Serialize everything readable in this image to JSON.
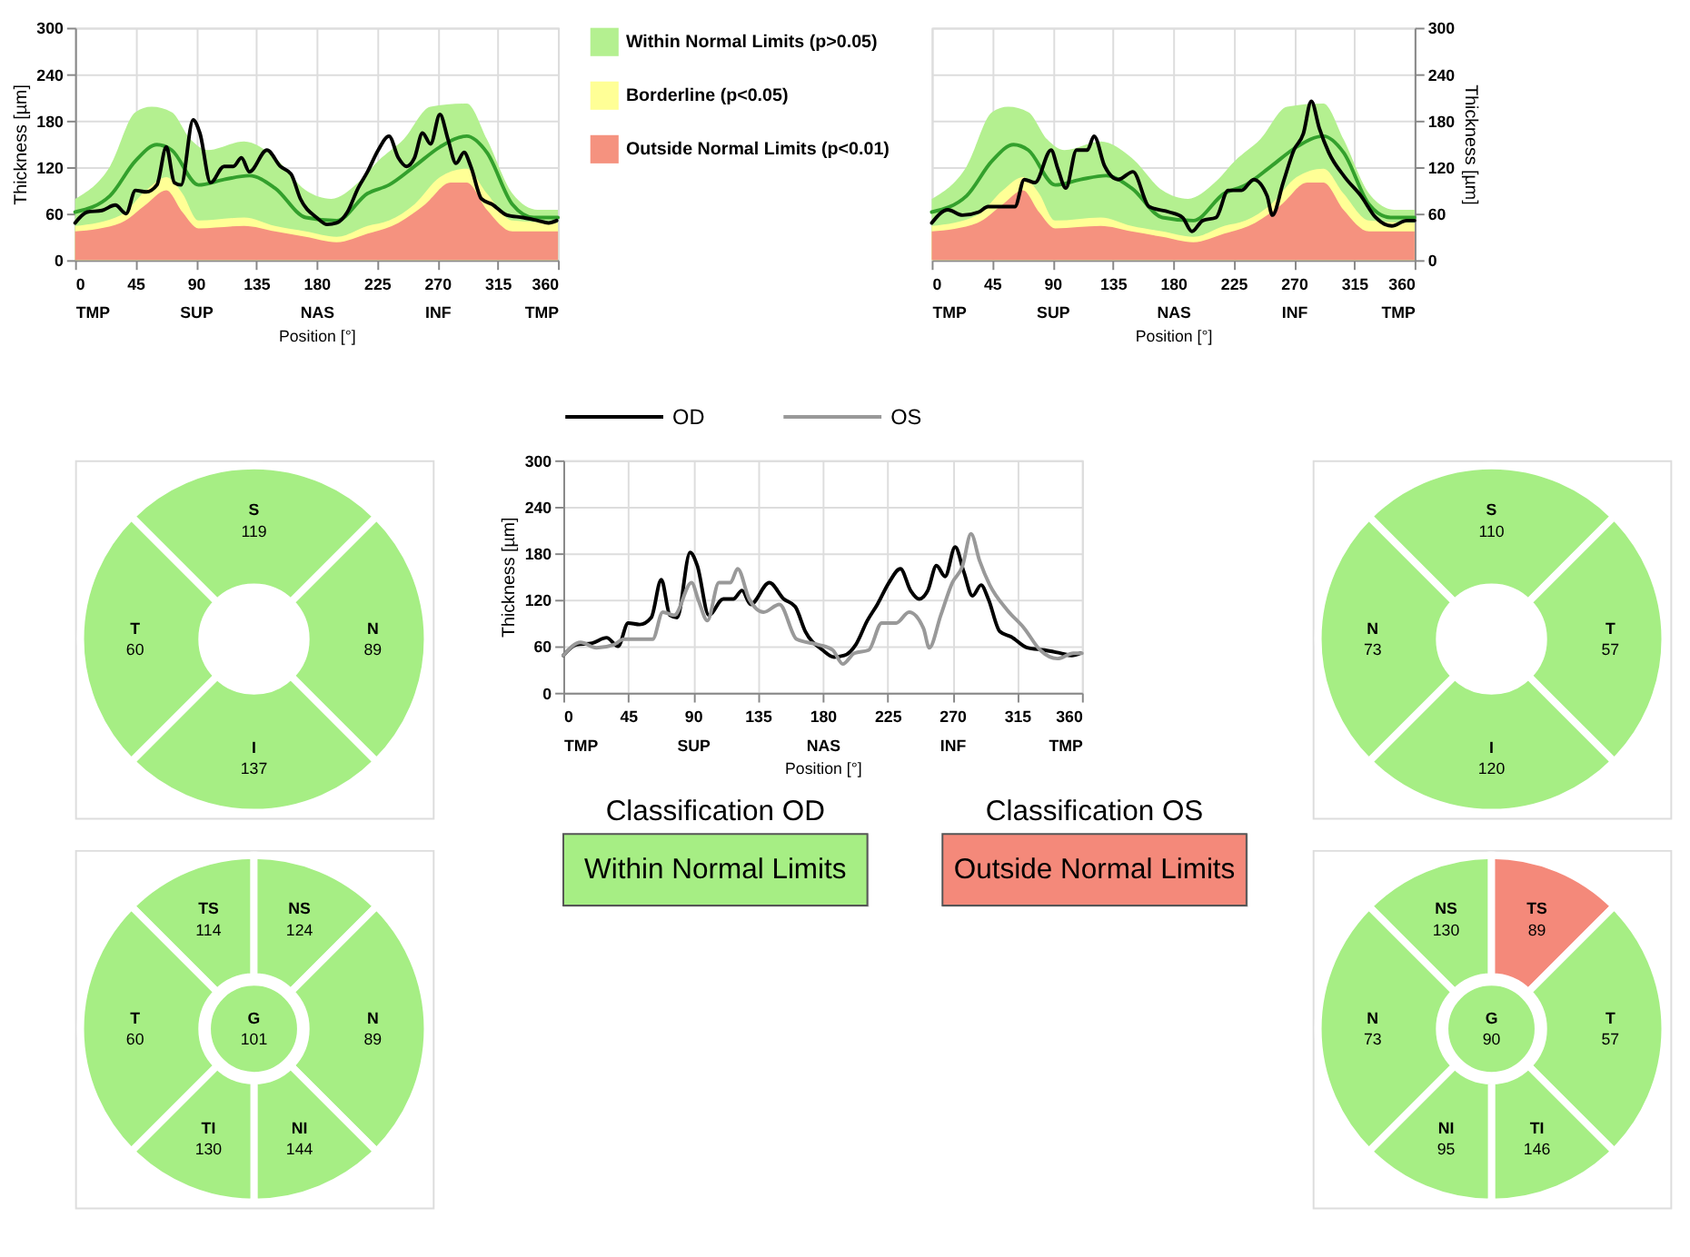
{
  "chart_data": [
    {
      "type": "line",
      "xlabel": "Position [°]",
      "ylabel": "Thickness [µm]",
      "xlim": [
        0,
        360
      ],
      "xticks": [
        {
          "value": 0,
          "label": "0\nTMP"
        },
        45,
        {
          "value": 90,
          "label": "90\nSUP"
        },
        135,
        {
          "value": 180,
          "label": "180\nNAS"
        },
        225,
        {
          "value": 270,
          "label": "270\nINF"
        },
        315,
        {
          "value": 360,
          "label": "360\nTMP"
        }
      ],
      "ylim": [
        0,
        300
      ],
      "yticks": [
        0,
        60,
        120,
        180,
        240,
        300
      ],
      "grid": true,
      "legend": "right",
      "series": [
        {
          "name": "Within Normal Limits (p>0.05)",
          "type": "area",
          "color": "#b4f090",
          "x": [
            0,
            26,
            45,
            57,
            72,
            86,
            99,
            126,
            149,
            172,
            191,
            211,
            226,
            245,
            265,
            292,
            307,
            326,
            345,
            360
          ],
          "values": [
            79,
            121,
            191,
            198,
            191,
            156,
            142,
            153,
            132,
            90,
            79,
            100,
            128,
            156,
            198,
            202,
            156,
            86,
            65,
            65
          ]
        },
        {
          "name": "Borderline (p<0.05)",
          "type": "area",
          "color": "#ffff96",
          "x": [
            0,
            34,
            53,
            68,
            80,
            92,
            126,
            149,
            172,
            195,
            218,
            234,
            253,
            272,
            292,
            307,
            326,
            360
          ],
          "values": [
            44,
            58,
            90,
            107,
            86,
            51,
            55,
            44,
            37,
            30,
            44,
            51,
            72,
            107,
            118,
            86,
            51,
            48
          ]
        },
        {
          "name": "Outside Normal Limits (p<0.01)",
          "type": "area",
          "color": "#f5927f",
          "x": [
            0,
            34,
            53,
            68,
            80,
            92,
            126,
            149,
            172,
            195,
            218,
            241,
            261,
            280,
            292,
            307,
            326,
            360
          ],
          "values": [
            37,
            48,
            72,
            90,
            62,
            41,
            44,
            37,
            30,
            23,
            34,
            48,
            72,
            100,
            100,
            65,
            37,
            37
          ]
        },
        {
          "type": "line",
          "color": "#33a02c",
          "x": [
            0,
            26,
            45,
            61,
            72,
            92,
            111,
            130,
            149,
            172,
            195,
            218,
            234,
            253,
            272,
            292,
            307,
            326,
            342,
            360
          ],
          "values": [
            62,
            83,
            128,
            149,
            142,
            97,
            104,
            109,
            93,
            55,
            51,
            86,
            97,
            121,
            146,
            160,
            139,
            72,
            55,
            55
          ]
        },
        {
          "type": "line",
          "color": "#000000",
          "x": [
            0,
            9,
            20,
            30,
            38,
            45,
            53,
            61,
            68,
            74,
            79,
            88,
            93,
            101,
            111,
            118,
            124,
            130,
            143,
            153,
            161,
            168,
            180,
            188,
            195,
            203,
            211,
            218,
            226,
            234,
            241,
            247,
            253,
            259,
            265,
            272,
            278,
            284,
            290,
            295,
            303,
            311,
            322,
            334,
            345,
            353,
            359
          ],
          "values": [
            48,
            62,
            64,
            71,
            60,
            90,
            88,
            97,
            146,
            100,
            97,
            181,
            164,
            100,
            121,
            121,
            132,
            114,
            142,
            121,
            111,
            79,
            55,
            46,
            48,
            62,
            93,
            114,
            142,
            160,
            132,
            121,
            132,
            164,
            150,
            188,
            156,
            125,
            139,
            121,
            79,
            72,
            58,
            55,
            51,
            48,
            51
          ]
        }
      ]
    },
    {
      "type": "line",
      "xlabel": "Position [°]",
      "y2label": "Thickness [µm]",
      "xlim": [
        0,
        360
      ],
      "xticks": [
        {
          "value": 0,
          "label": "0\nTMP"
        },
        45,
        {
          "value": 90,
          "label": "90\nSUP"
        },
        135,
        {
          "value": 180,
          "label": "180\nNAS"
        },
        225,
        {
          "value": 270,
          "label": "270\nINF"
        },
        315,
        {
          "value": 360,
          "label": "360\nTMP"
        }
      ],
      "y2lim": [
        0,
        300
      ],
      "y2ticks": [
        0,
        60,
        120,
        180,
        240,
        300
      ],
      "grid": true,
      "series": [
        {
          "type": "area",
          "axis": "y2",
          "color": "#b4f090",
          "x": [
            0,
            26,
            45,
            57,
            72,
            86,
            99,
            126,
            149,
            172,
            191,
            211,
            226,
            245,
            265,
            292,
            307,
            326,
            345,
            360
          ],
          "values": [
            79,
            121,
            191,
            198,
            191,
            156,
            142,
            153,
            132,
            90,
            79,
            100,
            128,
            156,
            198,
            202,
            156,
            86,
            65,
            65
          ]
        },
        {
          "type": "area",
          "axis": "y2",
          "color": "#ffff96",
          "x": [
            0,
            34,
            53,
            68,
            80,
            92,
            126,
            149,
            172,
            195,
            218,
            234,
            253,
            272,
            292,
            307,
            326,
            360
          ],
          "values": [
            44,
            58,
            90,
            107,
            86,
            51,
            55,
            44,
            37,
            30,
            44,
            51,
            72,
            107,
            118,
            86,
            51,
            48
          ]
        },
        {
          "type": "area",
          "axis": "y2",
          "color": "#f5927f",
          "x": [
            0,
            34,
            53,
            68,
            80,
            92,
            126,
            149,
            172,
            195,
            218,
            241,
            261,
            280,
            292,
            307,
            326,
            360
          ],
          "values": [
            37,
            48,
            72,
            90,
            62,
            41,
            44,
            37,
            30,
            23,
            34,
            48,
            72,
            100,
            100,
            65,
            37,
            37
          ]
        },
        {
          "type": "line",
          "axis": "y2",
          "color": "#33a02c",
          "x": [
            0,
            26,
            45,
            61,
            72,
            92,
            111,
            130,
            149,
            172,
            195,
            218,
            234,
            253,
            272,
            292,
            307,
            326,
            342,
            360
          ],
          "values": [
            62,
            83,
            128,
            149,
            142,
            97,
            104,
            109,
            93,
            55,
            51,
            86,
            97,
            121,
            146,
            160,
            139,
            72,
            55,
            55
          ]
        },
        {
          "type": "line",
          "axis": "y2",
          "color": "#000000",
          "x": [
            0,
            12,
            23,
            35,
            42,
            62,
            69,
            77,
            89,
            94,
            100,
            108,
            116,
            121,
            129,
            139,
            150,
            162,
            177,
            187,
            194,
            202,
            212,
            221,
            231,
            240,
            250,
            254,
            262,
            270,
            277,
            283,
            289,
            296,
            308,
            320,
            331,
            343,
            354,
            360
          ],
          "values": [
            48,
            65,
            58,
            62,
            69,
            69,
            104,
            100,
            142,
            118,
            93,
            142,
            142,
            160,
            121,
            104,
            114,
            69,
            62,
            55,
            37,
            51,
            55,
            90,
            90,
            104,
            83,
            58,
            100,
            142,
            163,
            205,
            170,
            139,
            107,
            83,
            55,
            44,
            51,
            51
          ]
        }
      ]
    },
    {
      "type": "other",
      "data_labels": true,
      "categories": [
        "S",
        "N",
        "I",
        "T"
      ],
      "values": [
        119,
        89,
        137,
        60
      ],
      "colors": [
        "#a6ee84",
        "#a6ee84",
        "#a6ee84",
        "#a6ee84"
      ]
    },
    {
      "type": "line",
      "xlabel": "Position [°]",
      "ylabel": "Thickness [µm]",
      "xlim": [
        0,
        360
      ],
      "xticks": [
        {
          "value": 0,
          "label": "0\nTMP"
        },
        45,
        {
          "value": 90,
          "label": "90\nSUP"
        },
        135,
        {
          "value": 180,
          "label": "180\nNAS"
        },
        225,
        {
          "value": 270,
          "label": "270\nINF"
        },
        315,
        {
          "value": 360,
          "label": "360\nTMP"
        }
      ],
      "ylim": [
        0,
        300
      ],
      "yticks": [
        0,
        60,
        120,
        180,
        240,
        300
      ],
      "grid": true,
      "legend": "top",
      "series": [
        {
          "name": "OD",
          "type": "line",
          "color": "#000000",
          "x": [
            0,
            9,
            20,
            30,
            38,
            45,
            53,
            61,
            68,
            74,
            79,
            88,
            93,
            101,
            111,
            118,
            124,
            130,
            143,
            153,
            161,
            168,
            180,
            188,
            195,
            203,
            211,
            218,
            226,
            234,
            241,
            247,
            253,
            259,
            265,
            272,
            278,
            284,
            290,
            295,
            303,
            311,
            322,
            334,
            345,
            353,
            359
          ],
          "values": [
            48,
            62,
            64,
            71,
            60,
            90,
            88,
            97,
            146,
            100,
            97,
            181,
            164,
            100,
            121,
            121,
            132,
            114,
            142,
            121,
            111,
            79,
            55,
            46,
            48,
            62,
            93,
            114,
            142,
            160,
            132,
            121,
            132,
            164,
            150,
            188,
            156,
            125,
            139,
            121,
            79,
            72,
            58,
            55,
            51,
            48,
            51
          ]
        },
        {
          "name": "OS",
          "type": "line",
          "color": "#999999",
          "x": [
            0,
            12,
            23,
            35,
            42,
            62,
            69,
            77,
            89,
            94,
            100,
            108,
            116,
            121,
            129,
            139,
            150,
            162,
            177,
            187,
            194,
            202,
            212,
            221,
            231,
            240,
            250,
            254,
            262,
            270,
            277,
            283,
            289,
            296,
            308,
            320,
            331,
            343,
            354,
            360
          ],
          "values": [
            48,
            65,
            58,
            62,
            69,
            69,
            104,
            100,
            142,
            118,
            93,
            142,
            142,
            160,
            121,
            104,
            114,
            69,
            62,
            55,
            37,
            51,
            55,
            90,
            90,
            104,
            83,
            58,
            100,
            142,
            163,
            205,
            170,
            139,
            107,
            83,
            55,
            44,
            51,
            51
          ]
        }
      ]
    },
    {
      "type": "other",
      "data_labels": true,
      "categories": [
        "S",
        "T",
        "I",
        "N"
      ],
      "values": [
        110,
        57,
        120,
        73
      ],
      "colors": [
        "#a6ee84",
        "#a6ee84",
        "#a6ee84",
        "#a6ee84"
      ]
    },
    {
      "type": "other",
      "data_labels": true,
      "categories": [
        "TS",
        "NS",
        "N",
        "NI",
        "TI",
        "T",
        "G"
      ],
      "values": [
        114,
        124,
        89,
        144,
        130,
        60,
        101
      ],
      "colors": [
        "#a6ee84",
        "#a6ee84",
        "#a6ee84",
        "#a6ee84",
        "#a6ee84",
        "#a6ee84",
        "#a6ee84"
      ]
    },
    {
      "type": "other",
      "title": "Classification OD",
      "annotations": [
        "Within Normal Limits"
      ],
      "colors": [
        "#a6ee84"
      ]
    },
    {
      "type": "other",
      "title": "Classification OS",
      "annotations": [
        "Outside Normal Limits"
      ],
      "colors": [
        "#f4897a"
      ]
    },
    {
      "type": "other",
      "data_labels": true,
      "categories": [
        "NS",
        "TS",
        "T",
        "TI",
        "NI",
        "N",
        "G"
      ],
      "values": [
        130,
        89,
        57,
        146,
        95,
        73,
        90
      ],
      "colors": [
        "#a6ee84",
        "#f4897a",
        "#a6ee84",
        "#a6ee84",
        "#a6ee84",
        "#a6ee84",
        "#a6ee84"
      ]
    }
  ]
}
